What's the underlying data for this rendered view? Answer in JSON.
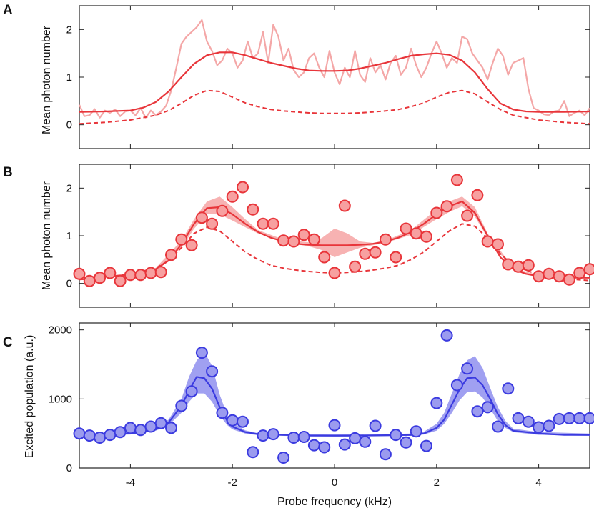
{
  "chart_data": [
    {
      "panel": "A",
      "type": "line",
      "ylabel": "Mean photon number",
      "xlim": [
        -5,
        5
      ],
      "ylim": [
        -0.5,
        2.5
      ],
      "yticks": [
        0,
        1,
        2
      ],
      "colors": {
        "raw": "#f4a7a7",
        "fit": "#e8353a",
        "dashed": "#e8353a"
      },
      "series": [
        {
          "name": "raw",
          "x": [
            -5,
            -4.9,
            -4.8,
            -4.7,
            -4.6,
            -4.5,
            -4.4,
            -4.3,
            -4.2,
            -4.1,
            -4,
            -3.9,
            -3.8,
            -3.7,
            -3.6,
            -3.5,
            -3.4,
            -3.3,
            -3.2,
            -3.1,
            -3,
            -2.9,
            -2.8,
            -2.7,
            -2.6,
            -2.5,
            -2.4,
            -2.3,
            -2.2,
            -2.1,
            -2,
            -1.9,
            -1.8,
            -1.7,
            -1.6,
            -1.5,
            -1.4,
            -1.3,
            -1.2,
            -1.1,
            -1,
            -0.9,
            -0.8,
            -0.7,
            -0.6,
            -0.5,
            -0.4,
            -0.3,
            -0.2,
            -0.1,
            0,
            0.1,
            0.2,
            0.3,
            0.4,
            0.5,
            0.6,
            0.7,
            0.8,
            0.9,
            1,
            1.1,
            1.2,
            1.3,
            1.4,
            1.5,
            1.6,
            1.7,
            1.8,
            1.9,
            2,
            2.1,
            2.2,
            2.3,
            2.4,
            2.5,
            2.6,
            2.7,
            2.8,
            2.9,
            3,
            3.1,
            3.2,
            3.3,
            3.4,
            3.5,
            3.6,
            3.7,
            3.8,
            3.9,
            4,
            4.1,
            4.2,
            4.3,
            4.4,
            4.5,
            4.6,
            4.7,
            4.8,
            4.9,
            5
          ],
          "y": [
            0.42,
            0.18,
            0.2,
            0.33,
            0.15,
            0.3,
            0.25,
            0.32,
            0.18,
            0.28,
            0.3,
            0.2,
            0.35,
            0.15,
            0.3,
            0.2,
            0.28,
            0.4,
            0.72,
            1.2,
            1.7,
            1.85,
            1.95,
            2.05,
            2.2,
            1.75,
            1.55,
            1.25,
            1.35,
            1.6,
            1.5,
            1.2,
            1.35,
            1.75,
            1.4,
            1.5,
            1.95,
            1.3,
            2.1,
            1.85,
            1.35,
            1.6,
            1.15,
            1.0,
            1.1,
            1.4,
            1.5,
            1.2,
            1.0,
            1.55,
            1.1,
            0.85,
            1.2,
            1.0,
            1.55,
            1.05,
            0.9,
            1.4,
            1.1,
            1.25,
            0.95,
            1.3,
            1.45,
            1.05,
            1.2,
            1.6,
            1.25,
            1.0,
            1.2,
            1.5,
            1.75,
            1.5,
            1.2,
            1.4,
            1.3,
            1.85,
            1.8,
            1.5,
            1.35,
            1.2,
            0.95,
            1.3,
            1.6,
            1.45,
            1.05,
            1.3,
            1.35,
            1.4,
            0.75,
            0.35,
            0.3,
            0.22,
            0.2,
            0.28,
            0.3,
            0.5,
            0.18,
            0.25,
            0.3,
            0.2,
            0.35
          ]
        },
        {
          "name": "fit",
          "x": [
            -5,
            -4.5,
            -4,
            -3.75,
            -3.5,
            -3.25,
            -3,
            -2.75,
            -2.5,
            -2.25,
            -2,
            -1.75,
            -1.5,
            -1.25,
            -1,
            -0.75,
            -0.5,
            -0.25,
            0,
            0.25,
            0.5,
            0.75,
            1,
            1.25,
            1.5,
            1.75,
            2,
            2.25,
            2.5,
            2.75,
            3,
            3.25,
            3.5,
            3.75,
            4,
            4.5,
            5
          ],
          "y": [
            0.27,
            0.28,
            0.3,
            0.36,
            0.48,
            0.7,
            1.0,
            1.28,
            1.46,
            1.52,
            1.52,
            1.46,
            1.38,
            1.3,
            1.24,
            1.18,
            1.14,
            1.13,
            1.13,
            1.14,
            1.18,
            1.24,
            1.3,
            1.38,
            1.45,
            1.48,
            1.5,
            1.47,
            1.35,
            1.1,
            0.75,
            0.45,
            0.32,
            0.28,
            0.27,
            0.27,
            0.28
          ]
        },
        {
          "name": "dashed",
          "x": [
            -5,
            -4.5,
            -4,
            -3.5,
            -3.25,
            -3,
            -2.75,
            -2.5,
            -2.25,
            -2,
            -1.75,
            -1.5,
            -1.25,
            -1,
            -0.75,
            -0.5,
            -0.25,
            0,
            0.25,
            0.5,
            0.75,
            1,
            1.25,
            1.5,
            1.75,
            2,
            2.25,
            2.5,
            2.75,
            3,
            3.25,
            3.5,
            4,
            4.5,
            5
          ],
          "y": [
            0.02,
            0.05,
            0.1,
            0.2,
            0.3,
            0.45,
            0.62,
            0.72,
            0.7,
            0.58,
            0.46,
            0.38,
            0.32,
            0.29,
            0.27,
            0.25,
            0.24,
            0.24,
            0.24,
            0.25,
            0.27,
            0.29,
            0.32,
            0.38,
            0.46,
            0.58,
            0.68,
            0.72,
            0.65,
            0.48,
            0.32,
            0.2,
            0.1,
            0.05,
            0.02
          ]
        }
      ]
    },
    {
      "panel": "B",
      "type": "scatter",
      "ylabel": "Mean photon number",
      "xlim": [
        -5,
        5
      ],
      "ylim": [
        -0.5,
        2.5
      ],
      "yticks": [
        0,
        1,
        2
      ],
      "colors": {
        "point_fill": "#f7a0a0",
        "point_edge": "#e8353a",
        "fit": "#e8353a",
        "band": "#f6a5a5"
      },
      "points": {
        "x": [
          -5,
          -4.8,
          -4.6,
          -4.4,
          -4.2,
          -4,
          -3.8,
          -3.6,
          -3.4,
          -3.2,
          -3,
          -2.8,
          -2.6,
          -2.4,
          -2.2,
          -2,
          -1.8,
          -1.6,
          -1.4,
          -1.2,
          -1,
          -0.8,
          -0.6,
          -0.4,
          -0.2,
          0,
          0.2,
          0.4,
          0.6,
          0.8,
          1,
          1.2,
          1.4,
          1.6,
          1.8,
          2,
          2.2,
          2.4,
          2.6,
          2.8,
          3,
          3.2,
          3.4,
          3.6,
          3.8,
          4,
          4.2,
          4.4,
          4.6,
          4.8,
          5
        ],
        "y": [
          0.2,
          0.05,
          0.12,
          0.22,
          0.05,
          0.18,
          0.18,
          0.22,
          0.24,
          0.6,
          0.92,
          0.8,
          1.38,
          1.25,
          1.52,
          1.82,
          2.02,
          1.55,
          1.25,
          1.25,
          0.9,
          0.88,
          1.02,
          0.92,
          0.55,
          0.22,
          1.63,
          0.35,
          0.62,
          0.65,
          0.92,
          0.55,
          1.15,
          1.05,
          0.98,
          1.48,
          1.62,
          2.17,
          1.42,
          1.85,
          0.88,
          0.82,
          0.4,
          0.35,
          0.38,
          0.15,
          0.2,
          0.15,
          0.08,
          0.22,
          0.3
        ]
      },
      "series": [
        {
          "name": "fit",
          "x": [
            -5,
            -4.5,
            -4,
            -3.75,
            -3.5,
            -3.25,
            -3,
            -2.75,
            -2.5,
            -2.25,
            -2,
            -1.75,
            -1.5,
            -1.25,
            -1,
            -0.75,
            -0.5,
            -0.25,
            0,
            0.25,
            0.5,
            0.75,
            1,
            1.25,
            1.5,
            1.75,
            2,
            2.25,
            2.5,
            2.75,
            3,
            3.25,
            3.5,
            3.75,
            4,
            4.5,
            5
          ],
          "y": [
            0.12,
            0.14,
            0.18,
            0.22,
            0.3,
            0.48,
            0.82,
            1.25,
            1.58,
            1.6,
            1.45,
            1.25,
            1.08,
            0.96,
            0.88,
            0.83,
            0.81,
            0.8,
            0.8,
            0.8,
            0.81,
            0.83,
            0.88,
            0.96,
            1.08,
            1.25,
            1.45,
            1.62,
            1.72,
            1.48,
            1.0,
            0.55,
            0.3,
            0.2,
            0.15,
            0.12,
            0.12
          ]
        },
        {
          "name": "dashed",
          "x": [
            -5,
            -4.5,
            -4,
            -3.5,
            -3.25,
            -3,
            -2.75,
            -2.5,
            -2.25,
            -2,
            -1.75,
            -1.5,
            -1.25,
            -1,
            -0.75,
            -0.5,
            -0.25,
            0,
            0.25,
            0.5,
            0.75,
            1,
            1.25,
            1.5,
            1.75,
            2,
            2.25,
            2.5,
            2.75,
            3,
            3.25,
            3.5,
            4,
            4.5,
            5
          ],
          "y": [
            0.08,
            0.12,
            0.2,
            0.32,
            0.48,
            0.75,
            1.05,
            1.18,
            1.1,
            0.88,
            0.66,
            0.5,
            0.38,
            0.32,
            0.28,
            0.25,
            0.23,
            0.22,
            0.23,
            0.25,
            0.28,
            0.32,
            0.38,
            0.5,
            0.66,
            0.88,
            1.1,
            1.25,
            1.2,
            0.95,
            0.62,
            0.38,
            0.18,
            0.1,
            0.06
          ]
        }
      ],
      "band": {
        "x": [
          -5,
          -4,
          -3.5,
          -3,
          -2.75,
          -2.5,
          -2.25,
          -2,
          -1.75,
          -1.5,
          -1,
          -0.5,
          -0.25,
          0,
          0.25,
          0.5,
          0.75,
          1,
          1.5,
          2,
          2.25,
          2.5,
          2.75,
          3,
          3.5,
          4,
          5
        ],
        "lower": [
          0.1,
          0.16,
          0.28,
          0.75,
          1.15,
          1.45,
          1.45,
          1.32,
          1.18,
          1.05,
          0.86,
          0.78,
          0.7,
          0.55,
          0.65,
          0.75,
          0.8,
          0.85,
          1.02,
          1.35,
          1.5,
          1.62,
          1.4,
          0.95,
          0.28,
          0.13,
          0.1
        ],
        "upper": [
          0.14,
          0.2,
          0.33,
          0.9,
          1.35,
          1.72,
          1.82,
          1.6,
          1.35,
          1.12,
          0.92,
          0.86,
          0.95,
          1.15,
          1.05,
          0.88,
          0.85,
          0.9,
          1.12,
          1.55,
          1.72,
          1.82,
          1.6,
          1.05,
          0.33,
          0.17,
          0.14
        ]
      }
    },
    {
      "panel": "C",
      "type": "scatter",
      "ylabel": "Excited population (a.u.)",
      "xlabel": "Probe frequency (kHz)",
      "xlim": [
        -5,
        5
      ],
      "ylim": [
        0,
        2100
      ],
      "yticks": [
        0,
        1000,
        2000
      ],
      "xticks": [
        -4,
        -2,
        0,
        2,
        4
      ],
      "colors": {
        "point_fill": "#9b9bef",
        "point_edge": "#3b3be0",
        "fit": "#3b3be0",
        "band": "#8f8fef"
      },
      "points": {
        "x": [
          -5,
          -4.8,
          -4.6,
          -4.4,
          -4.2,
          -4,
          -3.8,
          -3.6,
          -3.4,
          -3.2,
          -3,
          -2.8,
          -2.6,
          -2.4,
          -2.2,
          -2,
          -1.8,
          -1.6,
          -1.4,
          -1.2,
          -1,
          -0.8,
          -0.6,
          -0.4,
          -0.2,
          0,
          0.2,
          0.4,
          0.6,
          0.8,
          1,
          1.2,
          1.4,
          1.6,
          1.8,
          2,
          2.2,
          2.4,
          2.6,
          2.8,
          3,
          3.2,
          3.4,
          3.6,
          3.8,
          4,
          4.2,
          4.4,
          4.6,
          4.8,
          5
        ],
        "y": [
          500,
          470,
          440,
          480,
          520,
          580,
          550,
          600,
          650,
          580,
          900,
          1110,
          1670,
          1400,
          800,
          690,
          670,
          230,
          470,
          490,
          150,
          440,
          450,
          330,
          300,
          620,
          340,
          430,
          380,
          610,
          200,
          480,
          370,
          530,
          320,
          940,
          1920,
          1200,
          1440,
          820,
          880,
          600,
          1150,
          720,
          670,
          590,
          610,
          710,
          720,
          720,
          720
        ]
      },
      "series": [
        {
          "name": "fit",
          "x": [
            -5,
            -4.5,
            -4,
            -3.75,
            -3.5,
            -3.25,
            -3,
            -2.85,
            -2.7,
            -2.55,
            -2.4,
            -2.25,
            -2.1,
            -2,
            -1.75,
            -1.5,
            -1,
            -0.5,
            0,
            0.5,
            1,
            1.5,
            1.75,
            2,
            2.15,
            2.3,
            2.45,
            2.6,
            2.75,
            2.9,
            3.05,
            3.2,
            3.35,
            3.5,
            4,
            4.5,
            5
          ],
          "y": [
            480,
            490,
            500,
            520,
            560,
            660,
            900,
            1120,
            1320,
            1300,
            1150,
            880,
            680,
            600,
            520,
            490,
            480,
            470,
            470,
            470,
            475,
            480,
            500,
            580,
            700,
            920,
            1140,
            1300,
            1310,
            1200,
            1000,
            780,
            620,
            540,
            500,
            480,
            480
          ]
        }
      ],
      "band": {
        "x": [
          -5,
          -4,
          -3.5,
          -3.25,
          -3,
          -2.85,
          -2.7,
          -2.55,
          -2.4,
          -2.25,
          -2.1,
          -2,
          -1.75,
          -1.5,
          -1,
          0,
          1,
          1.5,
          1.75,
          2,
          2.15,
          2.3,
          2.45,
          2.6,
          2.75,
          2.9,
          3.05,
          3.2,
          3.35,
          3.5,
          4,
          5
        ],
        "lower": [
          465,
          485,
          540,
          620,
          800,
          960,
          1080,
          1080,
          960,
          760,
          620,
          560,
          500,
          475,
          465,
          455,
          460,
          465,
          485,
          540,
          640,
          800,
          980,
          1100,
          1110,
          1020,
          860,
          680,
          580,
          520,
          480,
          465
        ],
        "upper": [
          500,
          515,
          580,
          700,
          1000,
          1320,
          1560,
          1680,
          1480,
          1060,
          760,
          660,
          545,
          505,
          490,
          485,
          490,
          500,
          525,
          640,
          800,
          1080,
          1360,
          1560,
          1620,
          1450,
          1160,
          880,
          680,
          570,
          520,
          500
        ]
      }
    }
  ],
  "panel_letters": [
    "A",
    "B",
    "C"
  ]
}
